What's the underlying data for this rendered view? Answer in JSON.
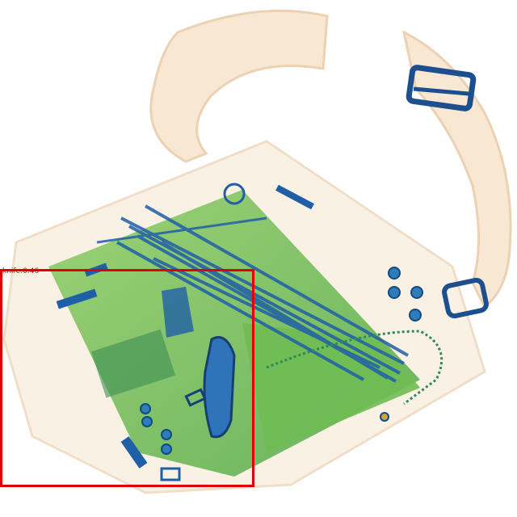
{
  "image": {
    "kind": "x-ray baggage scan",
    "detection": {
      "label": "knife:0.46",
      "color": "#e00000"
    }
  },
  "palette": {
    "organic": "#f2d9bd",
    "metal": "#1f5fa8",
    "mixed": "#5ab04a",
    "background": "#ffffff"
  }
}
